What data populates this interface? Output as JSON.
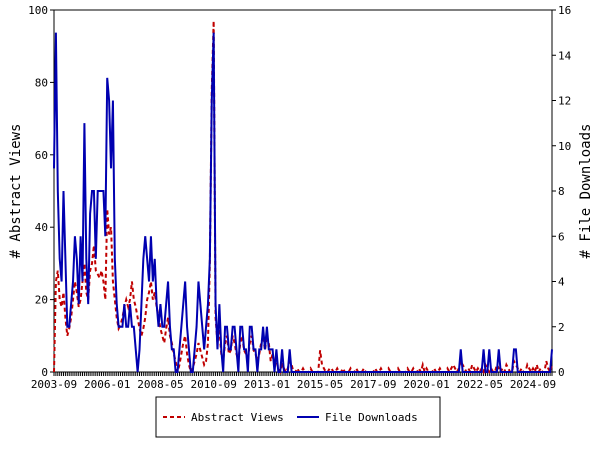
{
  "chart_data": {
    "type": "line",
    "y_label": "# Abstract Views",
    "y2_label": "# File Downloads",
    "ylim": [
      0,
      100
    ],
    "yticks": [
      0,
      20,
      40,
      60,
      80,
      100
    ],
    "y2lim": [
      0,
      16
    ],
    "y2ticks": [
      0,
      2,
      4,
      6,
      8,
      10,
      12,
      14,
      16
    ],
    "legend": "bottom",
    "categories": [
      "2003-09",
      null,
      null,
      null,
      null,
      null,
      null,
      null,
      null,
      null,
      null,
      null,
      null,
      null,
      null,
      null,
      null,
      null,
      null,
      null,
      null,
      null,
      null,
      null,
      null,
      null,
      null,
      null,
      "2006-01",
      null,
      null,
      null,
      null,
      null,
      null,
      null,
      null,
      null,
      null,
      null,
      null,
      null,
      null,
      null,
      null,
      null,
      null,
      null,
      null,
      null,
      null,
      null,
      null,
      null,
      null,
      null,
      "2008-05",
      null,
      null,
      null,
      null,
      null,
      null,
      null,
      null,
      null,
      null,
      null,
      null,
      null,
      null,
      null,
      null,
      null,
      null,
      null,
      null,
      null,
      null,
      null,
      null,
      null,
      null,
      null,
      "2010-09",
      null,
      null,
      null,
      null,
      null,
      null,
      null,
      null,
      null,
      null,
      null,
      null,
      null,
      null,
      null,
      null,
      null,
      null,
      null,
      null,
      null,
      null,
      null,
      null,
      null,
      null,
      null,
      "2013-01",
      null,
      null,
      null,
      null,
      null,
      null,
      null,
      null,
      null,
      null,
      null,
      null,
      null,
      null,
      null,
      null,
      null,
      null,
      null,
      null,
      null,
      null,
      null,
      null,
      null,
      null,
      null,
      "2015-05",
      null,
      null,
      null,
      null,
      null,
      null,
      null,
      null,
      null,
      null,
      null,
      null,
      null,
      null,
      null,
      null,
      null,
      null,
      null,
      null,
      null,
      null,
      null,
      null,
      null,
      null,
      null,
      "2017-09",
      null,
      null,
      null,
      null,
      null,
      null,
      null,
      null,
      null,
      null,
      null,
      null,
      null,
      null,
      null,
      null,
      null,
      null,
      null,
      null,
      null,
      null,
      null,
      null,
      null,
      null,
      null,
      "2020-01",
      null,
      null,
      null,
      null,
      null,
      null,
      null,
      null,
      null,
      null,
      null,
      null,
      null,
      null,
      null,
      null,
      null,
      null,
      null,
      null,
      null,
      null,
      null,
      null,
      null,
      null,
      null,
      "2022-05",
      null,
      null,
      null,
      null,
      null,
      null,
      null,
      null,
      null,
      null,
      null,
      null,
      null,
      null,
      null,
      null,
      null,
      null,
      null,
      null,
      null,
      null,
      null,
      null,
      null,
      null,
      null,
      "2024-09",
      null,
      null,
      null,
      null,
      null,
      null,
      null,
      null,
      null,
      null
    ],
    "series": [
      {
        "name": "Abstract Views",
        "color": "#c00000",
        "dash": true,
        "values": [
          0,
          25,
          28,
          20,
          18,
          22,
          15,
          10,
          12,
          15,
          20,
          25,
          22,
          18,
          20,
          25,
          30,
          22,
          20,
          28,
          30,
          35,
          28,
          27,
          26,
          28,
          25,
          20,
          45,
          38,
          40,
          25,
          20,
          15,
          12,
          13,
          15,
          18,
          20,
          18,
          20,
          25,
          20,
          18,
          15,
          12,
          10,
          12,
          15,
          20,
          22,
          25,
          20,
          22,
          18,
          15,
          12,
          10,
          8,
          12,
          15,
          10,
          8,
          5,
          3,
          0,
          2,
          5,
          8,
          10,
          5,
          2,
          0,
          1,
          3,
          5,
          8,
          6,
          4,
          2,
          3,
          8,
          30,
          78,
          97,
          15,
          8,
          12,
          5,
          3,
          8,
          10,
          5,
          6,
          10,
          8,
          5,
          3,
          8,
          10,
          6,
          5,
          3,
          8,
          10,
          6,
          5,
          3,
          5,
          8,
          10,
          6,
          10,
          8,
          3,
          5,
          2,
          3,
          1,
          0,
          2,
          1,
          0,
          1,
          3,
          2,
          0,
          0,
          1,
          0,
          0,
          1,
          0,
          0,
          0,
          1,
          0,
          0,
          0,
          0,
          6,
          2,
          1,
          0,
          0,
          1,
          1,
          0,
          0,
          1,
          0,
          0,
          1,
          0,
          0,
          0,
          1,
          0,
          0,
          1,
          0,
          0,
          0,
          1,
          0,
          0,
          0,
          0,
          0,
          1,
          0,
          0,
          1,
          0,
          0,
          0,
          1,
          0,
          0,
          0,
          0,
          1,
          0,
          0,
          0,
          0,
          1,
          0,
          0,
          1,
          0,
          0,
          1,
          0,
          2,
          0,
          1,
          0,
          0,
          0,
          1,
          0,
          0,
          1,
          0,
          0,
          0,
          1,
          0,
          1,
          2,
          1,
          0,
          1,
          3,
          2,
          1,
          0,
          1,
          0,
          2,
          1,
          0,
          1,
          0,
          1,
          0,
          2,
          1,
          0,
          1,
          0,
          0,
          2,
          1,
          0,
          1,
          0,
          2,
          1,
          0,
          0,
          3,
          2,
          1,
          0,
          1,
          0,
          0,
          2,
          1,
          0,
          1,
          0,
          2,
          0,
          1,
          0,
          0,
          3,
          1,
          0,
          2
        ]
      },
      {
        "name": "File Downloads",
        "color": "#0000b0",
        "axis": "y2",
        "values": [
          9,
          15,
          8,
          5,
          4,
          8,
          5,
          2,
          2,
          3,
          4,
          6,
          5,
          3,
          6,
          4,
          11,
          5,
          3,
          7,
          8,
          8,
          5,
          8,
          8,
          8,
          8,
          6,
          13,
          12,
          9,
          12,
          5,
          3,
          2,
          2,
          2,
          3,
          2,
          2,
          3,
          2,
          2,
          1,
          0,
          1,
          3,
          5,
          6,
          5,
          4,
          6,
          4,
          5,
          3,
          2,
          3,
          2,
          2,
          3,
          4,
          2,
          1,
          1,
          0,
          0,
          1,
          2,
          3,
          4,
          2,
          1,
          0,
          0,
          1,
          2,
          4,
          3,
          2,
          1,
          2,
          3,
          5,
          12,
          15,
          3,
          1,
          3,
          1,
          0,
          2,
          2,
          1,
          1,
          2,
          2,
          1,
          0,
          2,
          2,
          1,
          1,
          0,
          2,
          2,
          1,
          1,
          0,
          1,
          1,
          2,
          1,
          2,
          1,
          1,
          1,
          0,
          1,
          0,
          0,
          1,
          0,
          0,
          0,
          1,
          0,
          0,
          0,
          0,
          0,
          0,
          0,
          0,
          0,
          0,
          0,
          0,
          0,
          0,
          0,
          0,
          0,
          0,
          0,
          0,
          0,
          0,
          0,
          0,
          0,
          0,
          0,
          0,
          0,
          0,
          0,
          0,
          0,
          0,
          0,
          0,
          0,
          0,
          0,
          0,
          0,
          0,
          0,
          0,
          0,
          0,
          0,
          0,
          0,
          0,
          0,
          0,
          0,
          0,
          0,
          0,
          0,
          0,
          0,
          0,
          0,
          0,
          0,
          0,
          0,
          0,
          0,
          0,
          0,
          0,
          0,
          0,
          0,
          0,
          0,
          0,
          0,
          0,
          0,
          0,
          0,
          0,
          0,
          0,
          0,
          0,
          0,
          0,
          0,
          1,
          0,
          0,
          0,
          0,
          0,
          0,
          0,
          0,
          0,
          0,
          0,
          1,
          0,
          0,
          1,
          0,
          0,
          0,
          0,
          1,
          0,
          0,
          0,
          0,
          0,
          0,
          0,
          1,
          1,
          0,
          0,
          0,
          0,
          0,
          0,
          0,
          0,
          0,
          0,
          0,
          0,
          0,
          0,
          0,
          0,
          0,
          0,
          1
        ]
      }
    ]
  }
}
